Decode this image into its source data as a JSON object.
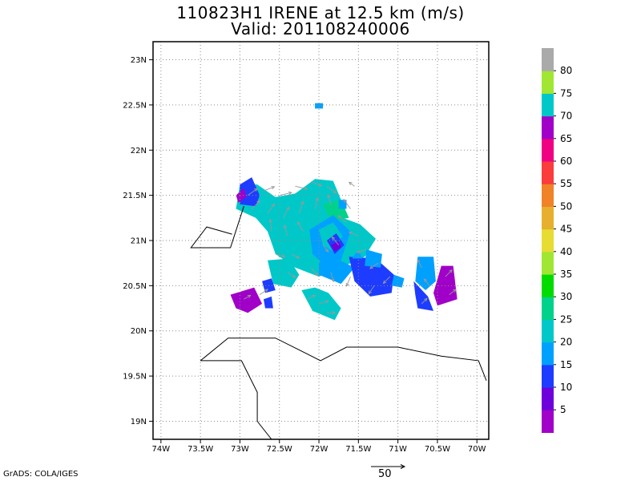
{
  "title_line1": "110823H1 IRENE at 12.5 km (m/s)",
  "title_line2": "Valid: 201108240006",
  "credit": "GrADS: COLA/IGES",
  "reference_vector": {
    "label": "50",
    "magnitude": 50
  },
  "map": {
    "lon_range": [
      -74.1,
      -69.85
    ],
    "lat_range": [
      18.8,
      23.2
    ],
    "lon_ticks": [
      {
        "v": -74,
        "label": "74W"
      },
      {
        "v": -73.5,
        "label": "73.5W"
      },
      {
        "v": -73,
        "label": "73W"
      },
      {
        "v": -72.5,
        "label": "72.5W"
      },
      {
        "v": -72,
        "label": "72W"
      },
      {
        "v": -71.5,
        "label": "71.5W"
      },
      {
        "v": -71,
        "label": "71W"
      },
      {
        "v": -70.5,
        "label": "70.5W"
      },
      {
        "v": -70,
        "label": "70W"
      }
    ],
    "lat_ticks": [
      {
        "v": 19,
        "label": "19N"
      },
      {
        "v": 19.5,
        "label": "19.5N"
      },
      {
        "v": 20,
        "label": "20N"
      },
      {
        "v": 20.5,
        "label": "20.5N"
      },
      {
        "v": 21,
        "label": "21N"
      },
      {
        "v": 21.5,
        "label": "21.5N"
      },
      {
        "v": 22,
        "label": "22N"
      },
      {
        "v": 22.5,
        "label": "22.5N"
      },
      {
        "v": 23,
        "label": "23N"
      }
    ],
    "grid": true
  },
  "colorbar": {
    "labels": [
      "5",
      "10",
      "15",
      "20",
      "25",
      "30",
      "35",
      "40",
      "45",
      "50",
      "55",
      "60",
      "65",
      "70",
      "75",
      "80"
    ],
    "colors": [
      "#a000c8",
      "#6e00dc",
      "#1e3cff",
      "#00a0ff",
      "#00c8c8",
      "#00d28c",
      "#00dc00",
      "#a0e632",
      "#e6dc32",
      "#e6af2d",
      "#f08228",
      "#fa3c3c",
      "#f00082",
      "#a000c8",
      "#00c8c8",
      "#a0e632",
      "#aaaaaa"
    ]
  },
  "coastlines": [
    [
      [
        -72.95,
        21.38
      ],
      [
        -73.12,
        20.92
      ],
      [
        -73.62,
        20.92
      ],
      [
        -73.42,
        21.15
      ],
      [
        -73.1,
        21.07
      ]
    ],
    [
      [
        -73.5,
        19.67
      ],
      [
        -73.15,
        19.92
      ],
      [
        -72.55,
        19.92
      ],
      [
        -71.98,
        19.67
      ],
      [
        -71.65,
        19.82
      ],
      [
        -71.0,
        19.82
      ],
      [
        -70.45,
        19.72
      ],
      [
        -69.98,
        19.67
      ],
      [
        -69.88,
        19.45
      ]
    ],
    [
      [
        -73.5,
        19.67
      ],
      [
        -72.98,
        19.67
      ],
      [
        -72.78,
        19.32
      ],
      [
        -72.78,
        19.0
      ],
      [
        -72.6,
        18.8
      ]
    ]
  ],
  "speed_patches": [
    {
      "c": 4,
      "p": [
        [
          -73.05,
          21.35
        ],
        [
          -73.0,
          21.62
        ],
        [
          -72.78,
          21.62
        ],
        [
          -72.55,
          21.48
        ],
        [
          -72.3,
          21.52
        ],
        [
          -72.05,
          21.68
        ],
        [
          -71.82,
          21.66
        ],
        [
          -71.72,
          21.45
        ],
        [
          -71.7,
          21.25
        ],
        [
          -71.48,
          21.18
        ],
        [
          -71.28,
          21.02
        ],
        [
          -71.42,
          20.82
        ],
        [
          -71.72,
          20.7
        ],
        [
          -72.0,
          20.6
        ],
        [
          -72.3,
          20.7
        ],
        [
          -72.55,
          20.85
        ],
        [
          -72.65,
          21.1
        ],
        [
          -72.8,
          21.25
        ]
      ]
    },
    {
      "c": 4,
      "p": [
        [
          -72.65,
          20.78
        ],
        [
          -72.58,
          20.52
        ],
        [
          -72.35,
          20.48
        ],
        [
          -72.25,
          20.62
        ],
        [
          -72.38,
          20.8
        ]
      ]
    },
    {
      "c": 3,
      "p": [
        [
          -72.0,
          20.62
        ],
        [
          -71.72,
          20.52
        ],
        [
          -71.55,
          20.7
        ],
        [
          -71.78,
          20.8
        ],
        [
          -72.0,
          20.76
        ]
      ]
    },
    {
      "c": 4,
      "p": [
        [
          -72.22,
          20.45
        ],
        [
          -72.08,
          20.22
        ],
        [
          -71.8,
          20.12
        ],
        [
          -71.72,
          20.25
        ],
        [
          -71.88,
          20.42
        ],
        [
          -72.05,
          20.48
        ]
      ]
    },
    {
      "c": 5,
      "p": [
        [
          -71.95,
          21.4
        ],
        [
          -71.72,
          21.45
        ],
        [
          -71.62,
          21.25
        ],
        [
          -71.85,
          21.22
        ]
      ]
    },
    {
      "c": 3,
      "p": [
        [
          -72.12,
          21.12
        ],
        [
          -71.82,
          21.28
        ],
        [
          -71.6,
          21.1
        ],
        [
          -71.72,
          20.78
        ],
        [
          -71.92,
          20.72
        ],
        [
          -72.08,
          20.85
        ]
      ]
    },
    {
      "c": 4,
      "p": [
        [
          -72.0,
          21.12
        ],
        [
          -71.82,
          21.2
        ],
        [
          -71.7,
          21.05
        ],
        [
          -71.82,
          20.88
        ],
        [
          -71.95,
          20.95
        ]
      ]
    },
    {
      "c": 2,
      "p": [
        [
          -71.9,
          21.0
        ],
        [
          -71.78,
          21.08
        ],
        [
          -71.68,
          20.95
        ],
        [
          -71.8,
          20.85
        ]
      ]
    },
    {
      "c": 1,
      "p": [
        [
          -71.85,
          20.95
        ],
        [
          -71.75,
          20.99
        ],
        [
          -71.72,
          20.92
        ],
        [
          -71.8,
          20.88
        ]
      ]
    },
    {
      "c": 2,
      "p": [
        [
          -71.62,
          20.82
        ],
        [
          -71.28,
          20.8
        ],
        [
          -71.05,
          20.62
        ],
        [
          -71.08,
          20.42
        ],
        [
          -71.35,
          20.38
        ],
        [
          -71.55,
          20.55
        ]
      ]
    },
    {
      "c": 3,
      "p": [
        [
          -71.4,
          20.9
        ],
        [
          -71.2,
          20.85
        ],
        [
          -71.22,
          20.7
        ],
        [
          -71.42,
          20.72
        ]
      ]
    },
    {
      "c": 3,
      "p": [
        [
          -71.5,
          20.9
        ],
        [
          -71.45,
          20.8
        ],
        [
          -71.58,
          20.8
        ]
      ]
    },
    {
      "c": 2,
      "p": [
        [
          -73.0,
          21.62
        ],
        [
          -72.85,
          21.7
        ],
        [
          -72.75,
          21.5
        ],
        [
          -72.8,
          21.38
        ],
        [
          -73.0,
          21.4
        ]
      ]
    },
    {
      "c": 0,
      "p": [
        [
          -73.05,
          21.5
        ],
        [
          -72.95,
          21.58
        ],
        [
          -72.92,
          21.48
        ],
        [
          -73.02,
          21.42
        ]
      ]
    },
    {
      "c": 2,
      "p": [
        [
          -72.72,
          20.55
        ],
        [
          -72.6,
          20.58
        ],
        [
          -72.55,
          20.45
        ],
        [
          -72.68,
          20.42
        ]
      ]
    },
    {
      "c": 0,
      "p": [
        [
          -73.12,
          20.4
        ],
        [
          -72.82,
          20.48
        ],
        [
          -72.72,
          20.3
        ],
        [
          -72.9,
          20.2
        ],
        [
          -73.05,
          20.25
        ]
      ]
    },
    {
      "c": 2,
      "p": [
        [
          -72.7,
          20.35
        ],
        [
          -72.6,
          20.38
        ],
        [
          -72.58,
          20.25
        ],
        [
          -72.68,
          20.25
        ]
      ]
    },
    {
      "c": 3,
      "p": [
        [
          -72.05,
          22.52
        ],
        [
          -71.95,
          22.52
        ],
        [
          -71.95,
          22.46
        ],
        [
          -72.05,
          22.46
        ]
      ]
    },
    {
      "c": 3,
      "p": [
        [
          -70.75,
          20.82
        ],
        [
          -70.55,
          20.82
        ],
        [
          -70.52,
          20.55
        ],
        [
          -70.65,
          20.45
        ],
        [
          -70.78,
          20.55
        ]
      ]
    },
    {
      "c": 2,
      "p": [
        [
          -70.8,
          20.55
        ],
        [
          -70.62,
          20.38
        ],
        [
          -70.55,
          20.22
        ],
        [
          -70.75,
          20.25
        ],
        [
          -70.78,
          20.4
        ]
      ]
    },
    {
      "c": 0,
      "p": [
        [
          -70.45,
          20.72
        ],
        [
          -70.3,
          20.72
        ],
        [
          -70.25,
          20.35
        ],
        [
          -70.5,
          20.28
        ],
        [
          -70.55,
          20.42
        ]
      ]
    },
    {
      "c": 3,
      "p": [
        [
          -71.05,
          20.62
        ],
        [
          -70.92,
          20.58
        ],
        [
          -70.95,
          20.48
        ],
        [
          -71.08,
          20.5
        ]
      ]
    },
    {
      "c": 3,
      "p": [
        [
          -71.75,
          21.45
        ],
        [
          -71.65,
          21.45
        ],
        [
          -71.65,
          21.35
        ],
        [
          -71.75,
          21.35
        ]
      ]
    }
  ],
  "wind_vectors": [
    [
      -72.9,
      21.5,
      14,
      10
    ],
    [
      -72.7,
      21.55,
      16,
      6
    ],
    [
      -72.5,
      21.5,
      18,
      4
    ],
    [
      -72.3,
      21.6,
      18,
      -4
    ],
    [
      -72.1,
      21.65,
      16,
      -6
    ],
    [
      -71.9,
      21.6,
      14,
      -10
    ],
    [
      -72.85,
      21.35,
      12,
      12
    ],
    [
      -72.65,
      21.3,
      10,
      14
    ],
    [
      -72.45,
      21.25,
      8,
      16
    ],
    [
      -72.25,
      21.3,
      6,
      18
    ],
    [
      -72.05,
      21.35,
      4,
      16
    ],
    [
      -71.85,
      21.4,
      -4,
      14
    ],
    [
      -72.6,
      21.1,
      -2,
      18
    ],
    [
      -72.4,
      21.05,
      -4,
      16
    ],
    [
      -72.2,
      21.1,
      -8,
      14
    ],
    [
      -71.65,
      21.2,
      -12,
      10
    ],
    [
      -71.5,
      21.05,
      -14,
      6
    ],
    [
      -71.4,
      20.9,
      -14,
      -4
    ],
    [
      -71.25,
      20.75,
      -12,
      -8
    ],
    [
      -71.1,
      20.6,
      -10,
      -10
    ],
    [
      -71.3,
      20.5,
      -8,
      -12
    ],
    [
      -71.6,
      20.6,
      -6,
      -14
    ],
    [
      -71.85,
      20.65,
      4,
      -14
    ],
    [
      -72.1,
      20.7,
      10,
      -12
    ],
    [
      -72.4,
      20.65,
      12,
      -8
    ],
    [
      -72.55,
      20.85,
      14,
      -4
    ],
    [
      -72.35,
      20.85,
      12,
      -6
    ],
    [
      -72.0,
      20.3,
      14,
      4
    ],
    [
      -71.9,
      20.2,
      12,
      0
    ],
    [
      -72.15,
      20.35,
      12,
      6
    ],
    [
      -71.6,
      21.35,
      -10,
      14
    ],
    [
      -70.7,
      20.7,
      -6,
      12
    ],
    [
      -70.6,
      20.5,
      -8,
      10
    ],
    [
      -70.7,
      20.3,
      8,
      8
    ],
    [
      -70.4,
      20.6,
      10,
      10
    ],
    [
      -70.35,
      20.4,
      10,
      8
    ],
    [
      -72.95,
      20.35,
      10,
      6
    ],
    [
      -72.75,
      20.4,
      12,
      8
    ],
    [
      -71.55,
      21.6,
      -8,
      6
    ],
    [
      -71.75,
      20.95,
      -10,
      12
    ],
    [
      -71.95,
      20.95,
      8,
      -10
    ]
  ]
}
